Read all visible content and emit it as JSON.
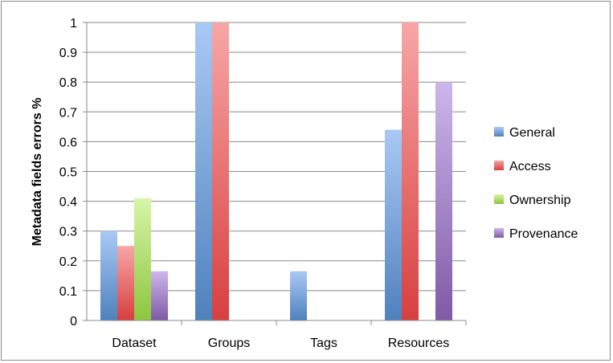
{
  "chart_data": {
    "type": "bar",
    "title": "",
    "xlabel": "",
    "ylabel": "Metadata fields errors %",
    "ylim": [
      0,
      1
    ],
    "yticks": [
      "0",
      "0.1",
      "0.2",
      "0.3",
      "0.4",
      "0.5",
      "0.6",
      "0.7",
      "0.8",
      "0.9",
      "1"
    ],
    "categories": [
      "Dataset",
      "Groups",
      "Tags",
      "Resources"
    ],
    "series": [
      {
        "name": "General",
        "values": [
          0.3,
          1.0,
          0.165,
          0.64
        ],
        "color": "#4f81bd",
        "light": "#a9c9f5"
      },
      {
        "name": "Access",
        "values": [
          0.25,
          1.0,
          0.0,
          1.0
        ],
        "color": "#d83f3f",
        "light": "#f7a6a6"
      },
      {
        "name": "Ownership",
        "values": [
          0.41,
          0.0,
          0.0,
          0.0
        ],
        "color": "#8cc63f",
        "light": "#d8f5a8"
      },
      {
        "name": "Provenance",
        "values": [
          0.165,
          0.0,
          0.0,
          0.8
        ],
        "color": "#7f5aa6",
        "light": "#cdb6ec"
      }
    ],
    "grid": true,
    "legend_position": "right"
  }
}
